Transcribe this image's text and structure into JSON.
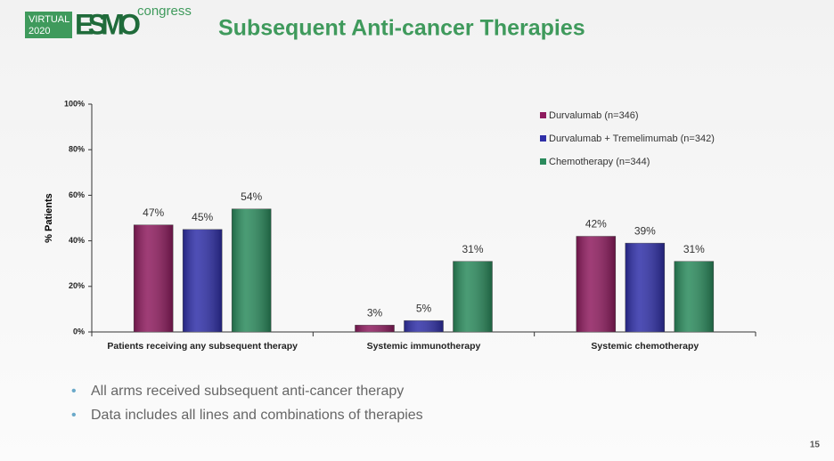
{
  "slide": {
    "logo": {
      "virtual": "VIRTUAL",
      "year": "2020",
      "esmo": "ESMO",
      "congress": "congress"
    },
    "title": "Subsequent Anti-cancer Therapies",
    "bullets": [
      "All arms received subsequent anti-cancer therapy",
      "Data includes all lines and combinations of therapies"
    ],
    "page_number": "15"
  },
  "chart_data": {
    "type": "bar",
    "y_label": "% Patients",
    "categories": [
      "Patients receiving any subsequent therapy",
      "Systemic immunotherapy",
      "Systemic chemotherapy"
    ],
    "series": [
      {
        "name": "Durvalumab (n=346)",
        "color": "#8e1b5e",
        "values": [
          47,
          3,
          42
        ],
        "value_labels": [
          "47%",
          "3%",
          "42%"
        ]
      },
      {
        "name": "Durvalumab + Tremelimumab (n=342)",
        "color": "#2f2fa8",
        "values": [
          45,
          5,
          39
        ],
        "value_labels": [
          "45%",
          "5%",
          "39%"
        ]
      },
      {
        "name": "Chemotherapy (n=344)",
        "color": "#2a8a5c",
        "values": [
          54,
          31,
          31
        ],
        "value_labels": [
          "54%",
          "31%",
          "31%"
        ]
      }
    ],
    "ylim": [
      0,
      100
    ],
    "yticks": [
      {
        "value": 0,
        "label": "0%"
      },
      {
        "value": 20,
        "label": "20%"
      },
      {
        "value": 40,
        "label": "40%"
      },
      {
        "value": 60,
        "label": "60%"
      },
      {
        "value": 80,
        "label": "80%"
      },
      {
        "value": 100,
        "label": "100%"
      }
    ],
    "legend": "top-right"
  }
}
